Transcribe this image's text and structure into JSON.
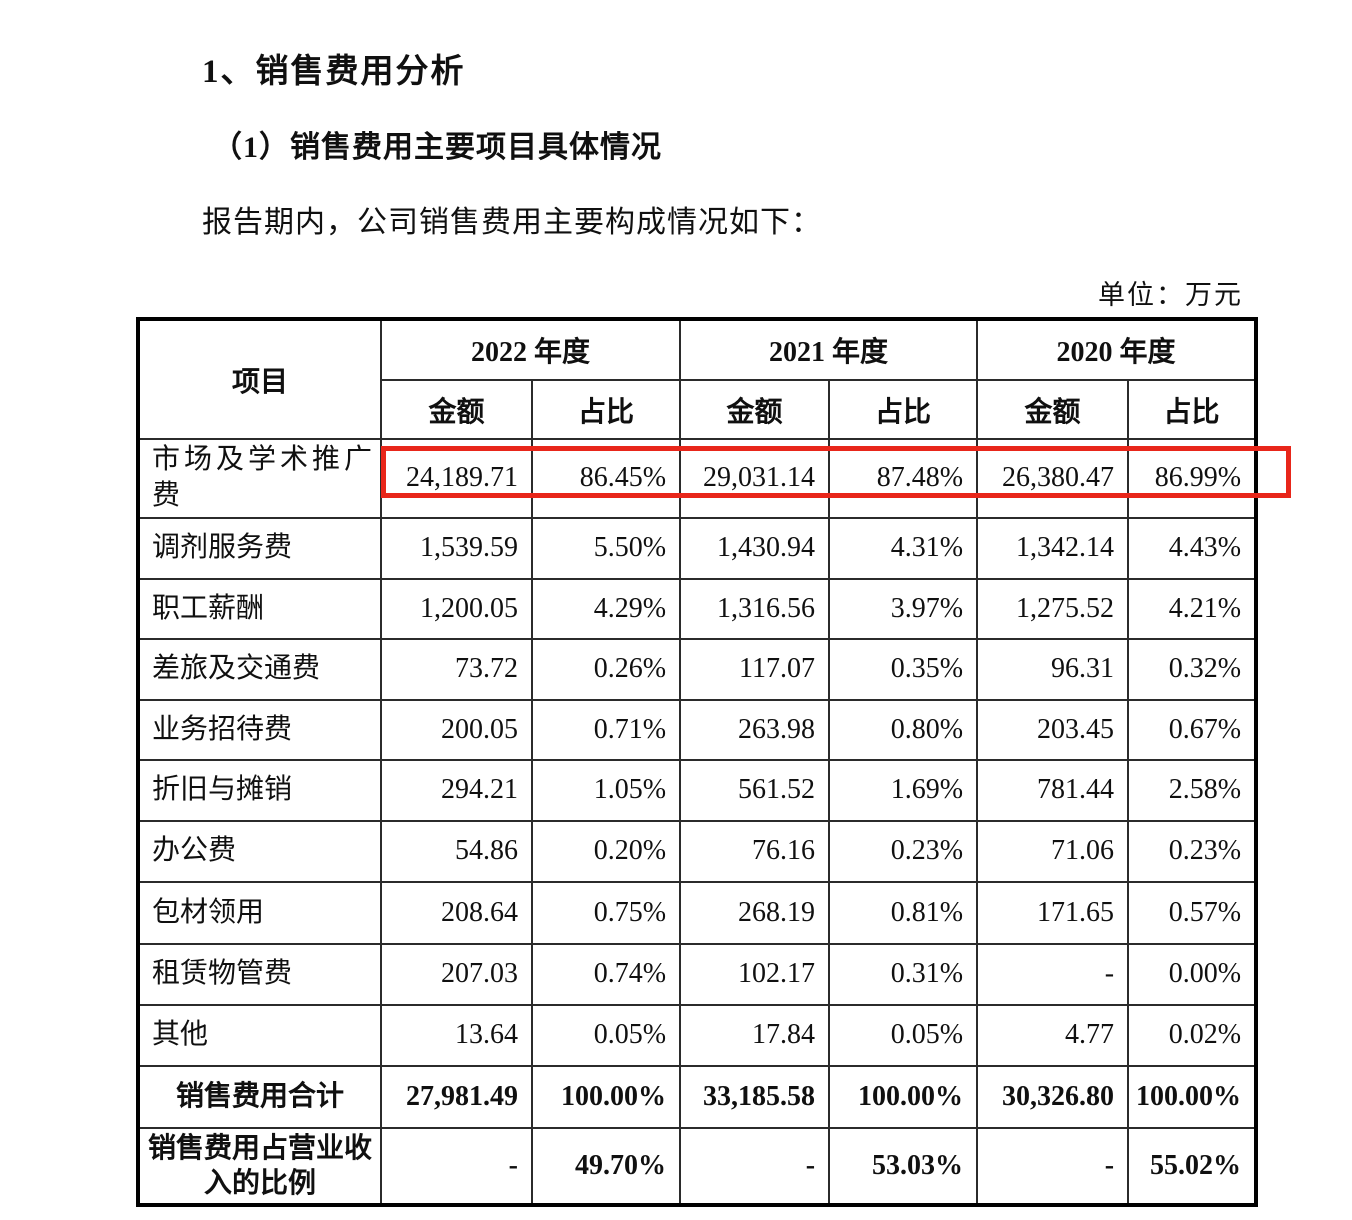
{
  "page": {
    "heading1": "1、销售费用分析",
    "heading2": "（1）销售费用主要项目具体情况",
    "paragraph": "报告期内，公司销售费用主要构成情况如下：",
    "unit_label": "单位：万元"
  },
  "table": {
    "header": {
      "item": "项目",
      "years": [
        "2022 年度",
        "2021 年度",
        "2020 年度"
      ],
      "sub": [
        "金额",
        "占比"
      ]
    },
    "rows": [
      {
        "item": "市场及学术推广费",
        "values": [
          "24,189.71",
          "86.45%",
          "29,031.14",
          "87.48%",
          "26,380.47",
          "86.99%"
        ],
        "bold": false,
        "center": false,
        "highlight": true
      },
      {
        "item": "调剂服务费",
        "values": [
          "1,539.59",
          "5.50%",
          "1,430.94",
          "4.31%",
          "1,342.14",
          "4.43%"
        ],
        "bold": false,
        "center": false
      },
      {
        "item": "职工薪酬",
        "values": [
          "1,200.05",
          "4.29%",
          "1,316.56",
          "3.97%",
          "1,275.52",
          "4.21%"
        ],
        "bold": false,
        "center": false
      },
      {
        "item": "差旅及交通费",
        "values": [
          "73.72",
          "0.26%",
          "117.07",
          "0.35%",
          "96.31",
          "0.32%"
        ],
        "bold": false,
        "center": false
      },
      {
        "item": "业务招待费",
        "values": [
          "200.05",
          "0.71%",
          "263.98",
          "0.80%",
          "203.45",
          "0.67%"
        ],
        "bold": false,
        "center": false
      },
      {
        "item": "折旧与摊销",
        "values": [
          "294.21",
          "1.05%",
          "561.52",
          "1.69%",
          "781.44",
          "2.58%"
        ],
        "bold": false,
        "center": false
      },
      {
        "item": "办公费",
        "values": [
          "54.86",
          "0.20%",
          "76.16",
          "0.23%",
          "71.06",
          "0.23%"
        ],
        "bold": false,
        "center": false
      },
      {
        "item": "包材领用",
        "values": [
          "208.64",
          "0.75%",
          "268.19",
          "0.81%",
          "171.65",
          "0.57%"
        ],
        "bold": false,
        "center": false
      },
      {
        "item": "租赁物管费",
        "values": [
          "207.03",
          "0.74%",
          "102.17",
          "0.31%",
          "-",
          "0.00%"
        ],
        "bold": false,
        "center": false
      },
      {
        "item": "其他",
        "values": [
          "13.64",
          "0.05%",
          "17.84",
          "0.05%",
          "4.77",
          "0.02%"
        ],
        "bold": false,
        "center": false
      },
      {
        "item": "销售费用合计",
        "values": [
          "27,981.49",
          "100.00%",
          "33,185.58",
          "100.00%",
          "30,326.80",
          "100.00%"
        ],
        "bold": true,
        "center": true
      },
      {
        "item": "销售费用占营业收入的比例",
        "values": [
          "-",
          "49.70%",
          "-",
          "53.03%",
          "-",
          "55.02%"
        ],
        "bold": true,
        "center": true
      }
    ]
  },
  "highlight": {
    "color": "#e8261a"
  }
}
